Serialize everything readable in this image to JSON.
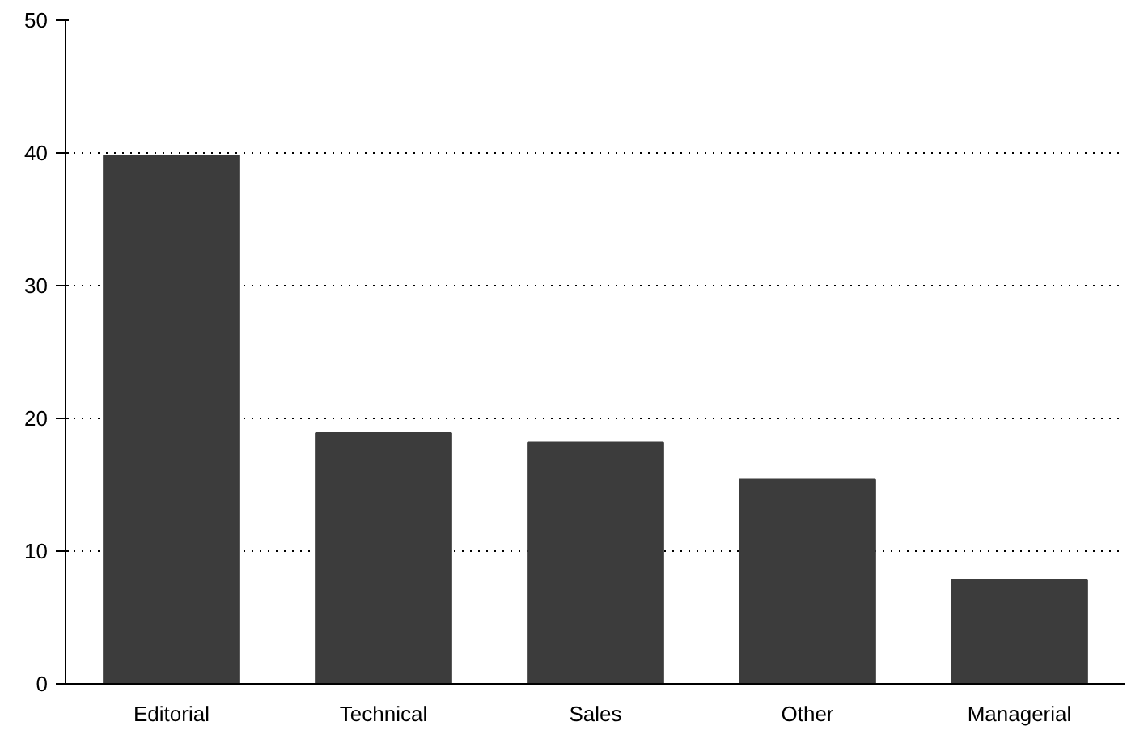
{
  "chart_data": {
    "type": "bar",
    "categories": [
      "Editorial",
      "Technical",
      "Sales",
      "Other",
      "Managerial"
    ],
    "values": [
      39.8,
      18.9,
      18.2,
      15.4,
      7.8
    ],
    "color": "#3c3c3c",
    "ylim": [
      0,
      50
    ],
    "yticks": [
      0,
      10,
      20,
      30,
      40,
      50
    ],
    "grid": "y"
  }
}
